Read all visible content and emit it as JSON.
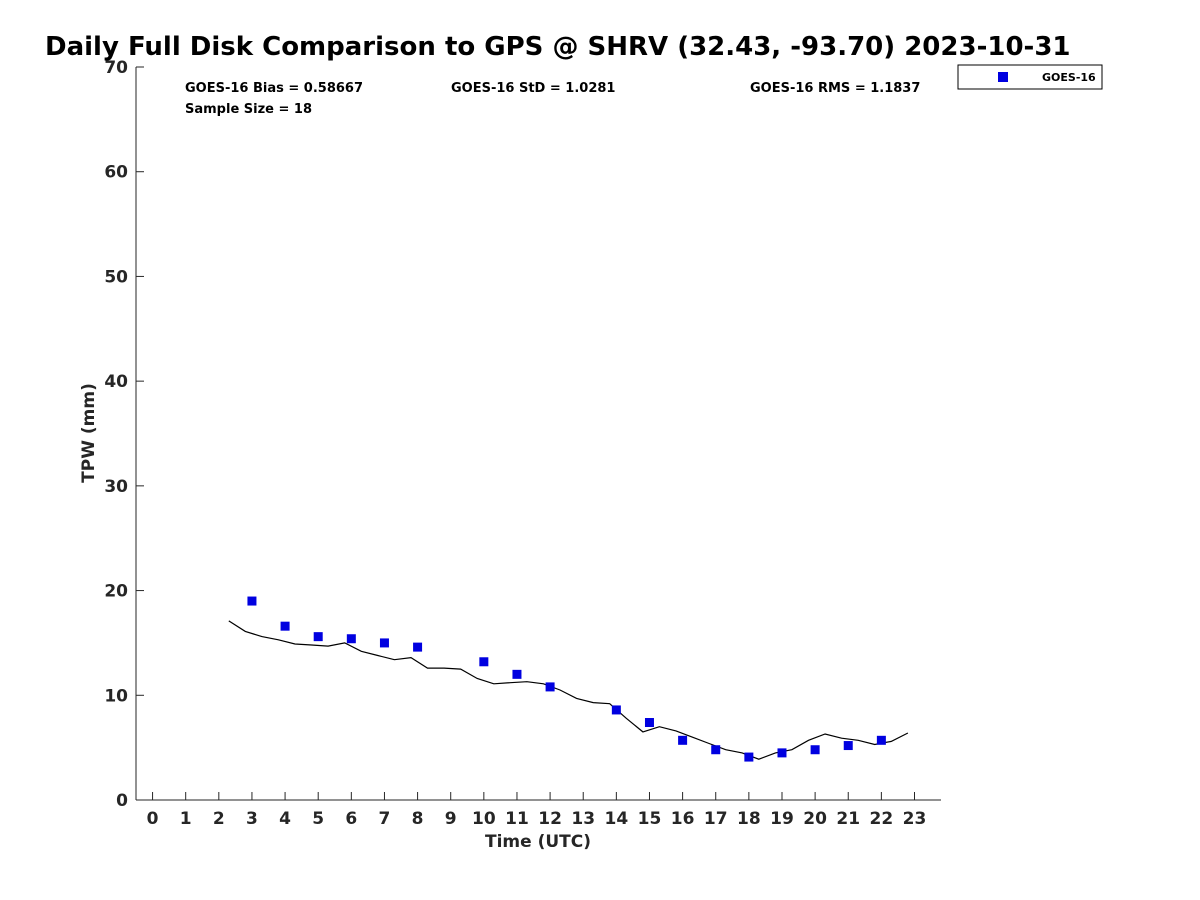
{
  "chart_data": {
    "type": "scatter",
    "title": "Daily Full Disk Comparison to GPS @ SHRV (32.43, -93.70) 2023-10-31",
    "xlabel": "Time (UTC)",
    "ylabel": "TPW (mm)",
    "xlim": [
      -0.5,
      23.8
    ],
    "ylim": [
      0,
      70
    ],
    "xticks": [
      0,
      1,
      2,
      3,
      4,
      5,
      6,
      7,
      8,
      9,
      10,
      11,
      12,
      13,
      14,
      15,
      16,
      17,
      18,
      19,
      20,
      21,
      22,
      23
    ],
    "yticks": [
      0,
      10,
      20,
      30,
      40,
      50,
      60,
      70
    ],
    "grid": false,
    "legend_position": "top-right",
    "stats": {
      "bias": "GOES-16 Bias = 0.58667",
      "std": "GOES-16 StD = 1.0281",
      "rms": "GOES-16 RMS = 1.1837",
      "sample_size": "Sample Size = 18"
    },
    "series": [
      {
        "name": "GOES-16",
        "kind": "scatter",
        "color": "#0000e0",
        "marker": "square",
        "x": [
          3,
          4,
          5,
          6,
          7,
          8,
          10,
          11,
          12,
          14,
          15,
          16,
          17,
          18,
          19,
          20,
          21,
          22
        ],
        "y": [
          19.0,
          16.6,
          15.6,
          15.4,
          15.0,
          14.6,
          13.2,
          12.0,
          10.8,
          8.6,
          7.4,
          5.7,
          4.8,
          4.1,
          4.5,
          4.8,
          5.2,
          5.7
        ]
      },
      {
        "kind": "line",
        "color": "#000000",
        "x": [
          2.3,
          2.8,
          3.3,
          3.8,
          4.3,
          4.8,
          5.3,
          5.8,
          6.3,
          6.8,
          7.3,
          7.8,
          8.3,
          8.8,
          9.3,
          9.8,
          10.3,
          10.8,
          11.3,
          11.8,
          12.3,
          12.8,
          13.3,
          13.8,
          14.3,
          14.8,
          15.3,
          15.8,
          16.3,
          16.8,
          17.3,
          17.8,
          18.3,
          18.8,
          19.3,
          19.8,
          20.3,
          20.8,
          21.3,
          21.8,
          22.3,
          22.8
        ],
        "y": [
          17.1,
          16.1,
          15.6,
          15.3,
          14.9,
          14.8,
          14.7,
          15.0,
          14.2,
          13.8,
          13.4,
          13.6,
          12.6,
          12.6,
          12.5,
          11.6,
          11.1,
          11.2,
          11.3,
          11.1,
          10.5,
          9.7,
          9.3,
          9.2,
          7.8,
          6.5,
          7.0,
          6.6,
          6.0,
          5.4,
          4.8,
          4.5,
          3.9,
          4.5,
          4.8,
          5.7,
          6.3,
          5.9,
          5.7,
          5.3,
          5.6,
          6.4
        ]
      }
    ]
  }
}
